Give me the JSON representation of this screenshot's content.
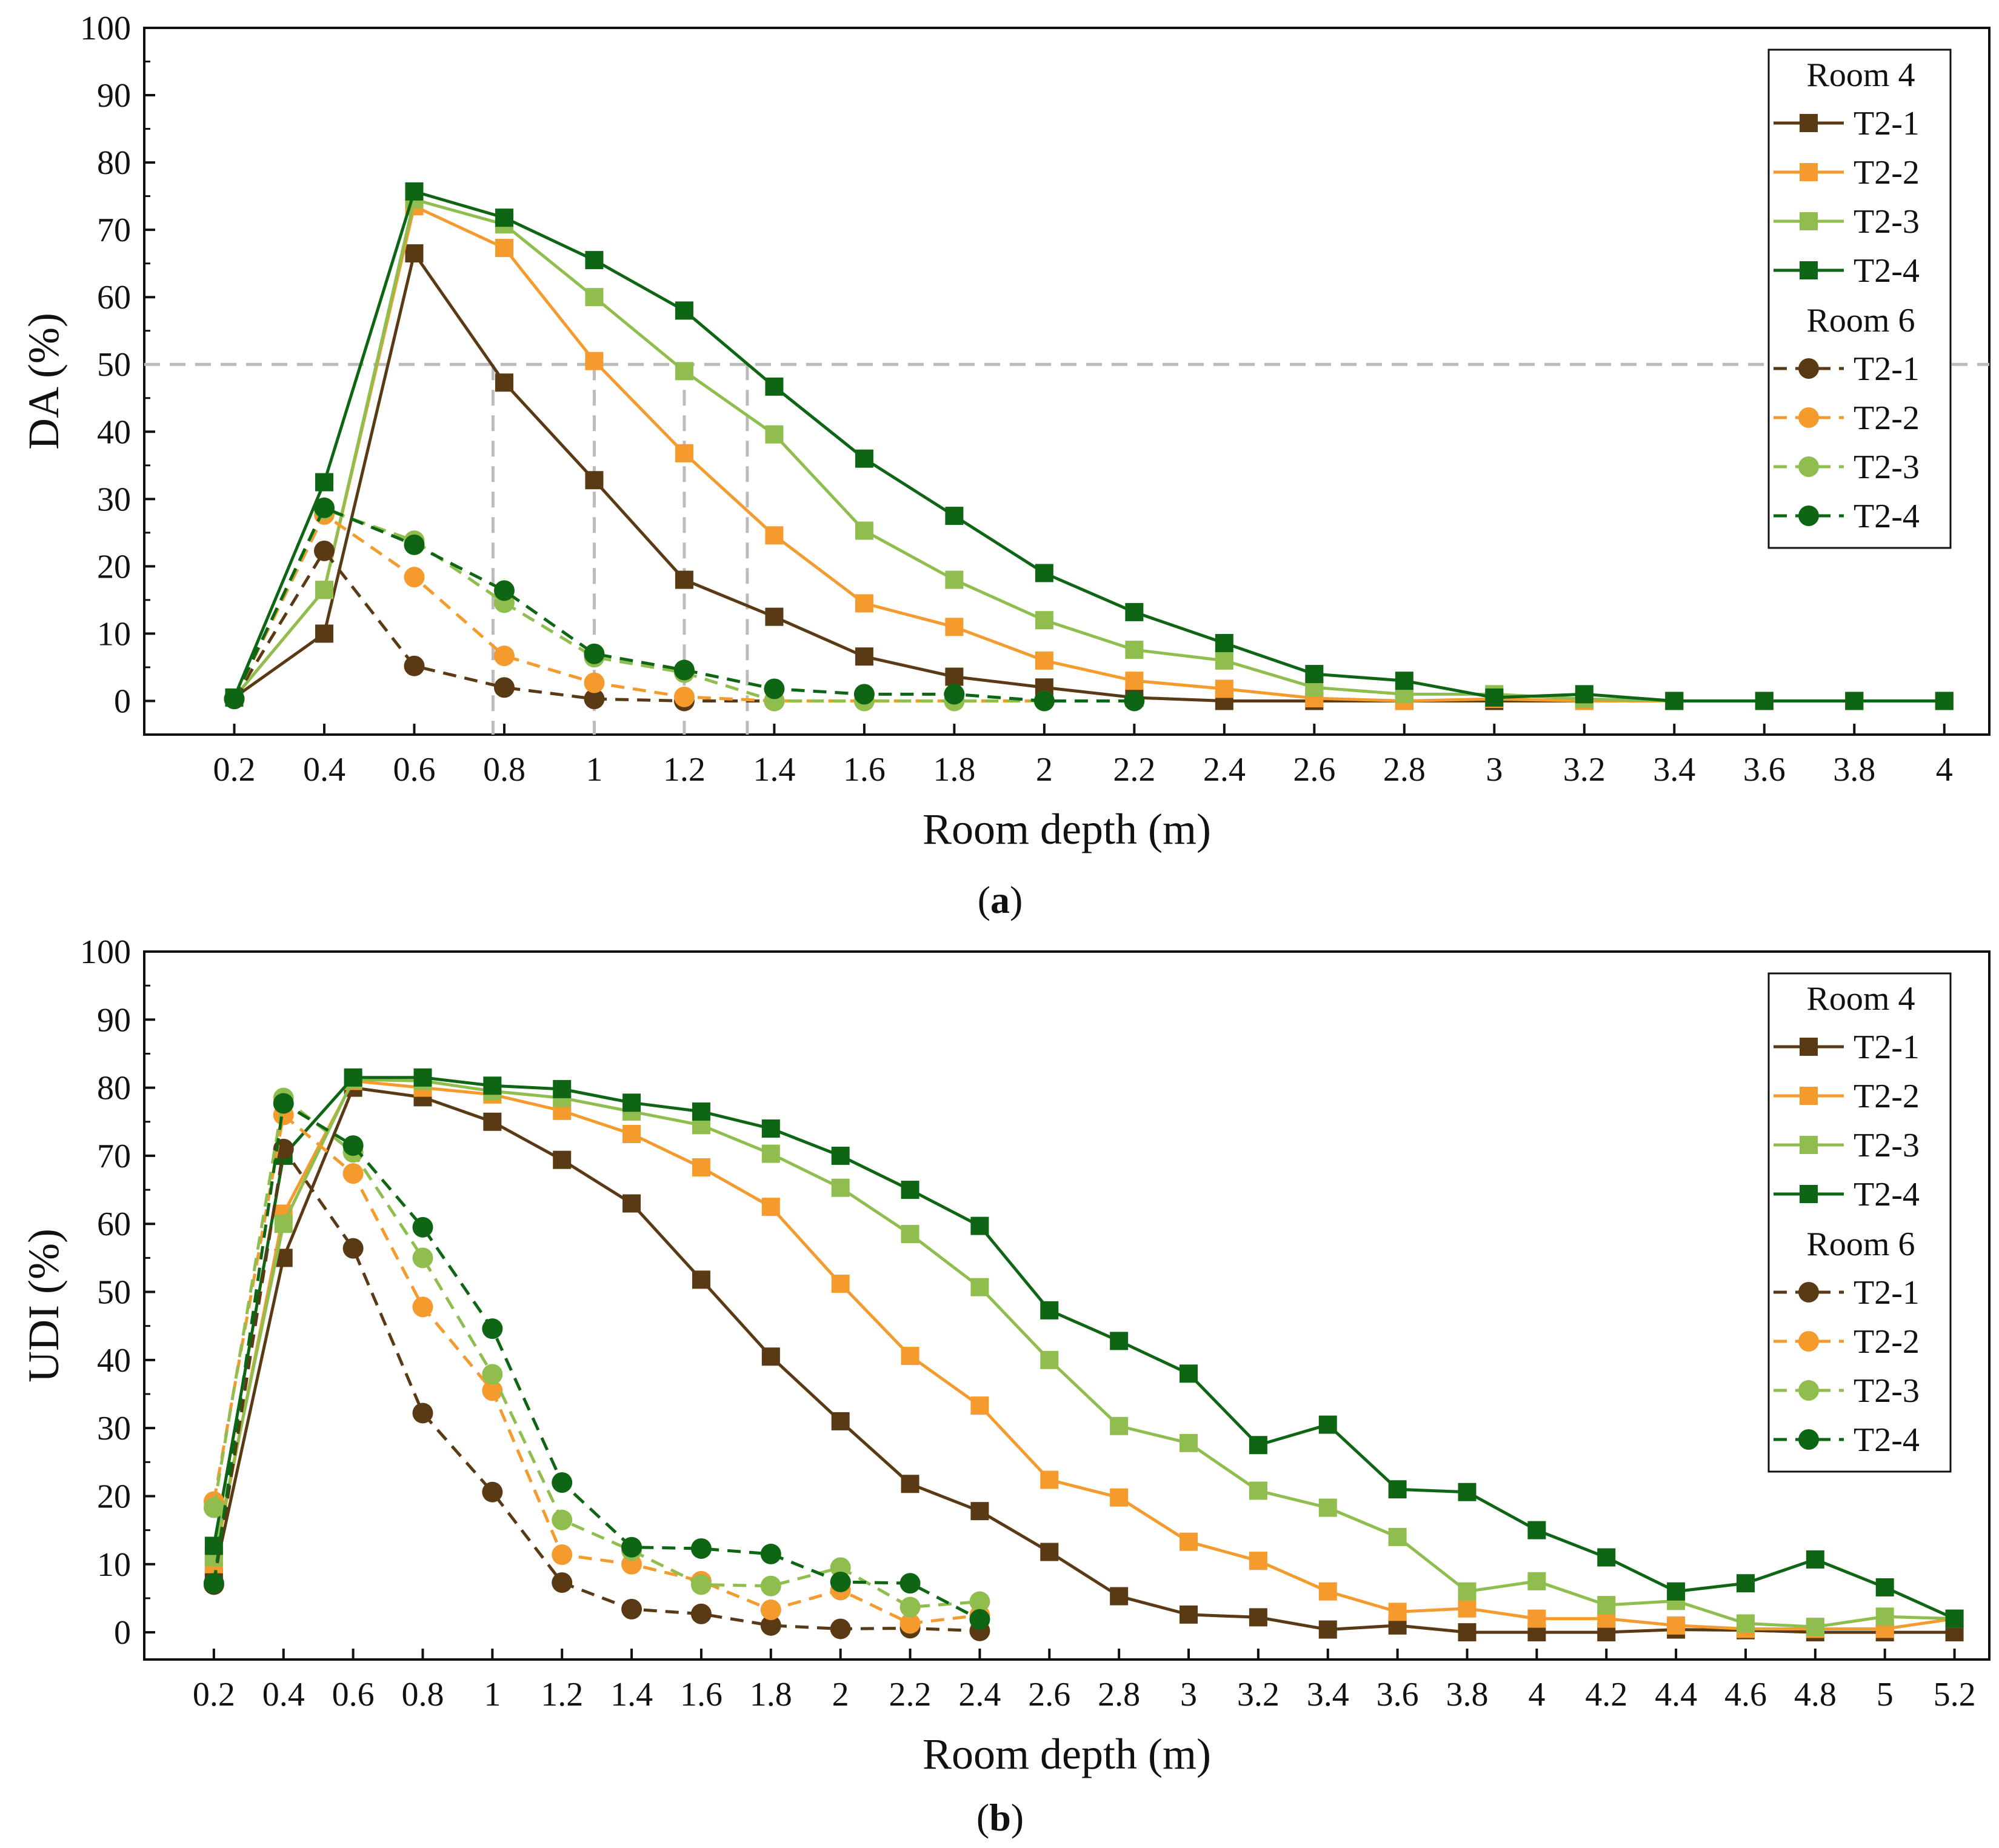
{
  "colors": {
    "T2-1": "#5a3a14",
    "T2-2": "#f59a2c",
    "T2-3": "#8fbe4e",
    "T2-4": "#0e6514",
    "reference_line": "#bbbbbb",
    "axis": "#111111"
  },
  "chart_data": [
    {
      "id": "a",
      "type": "line",
      "caption_letter": "a",
      "xlabel": "Room depth (m)",
      "ylabel": "DA (%)",
      "x": [
        0.2,
        0.4,
        0.6,
        0.8,
        1,
        1.2,
        1.4,
        1.6,
        1.8,
        2,
        2.2,
        2.4,
        2.6,
        2.8,
        3,
        3.2,
        3.4,
        3.6,
        3.8,
        4
      ],
      "x_tick_labels": [
        "0.2",
        "0.4",
        "0.6",
        "0.8",
        "1",
        "1.2",
        "1.4",
        "1.6",
        "1.8",
        "2",
        "2.2",
        "2.4",
        "2.6",
        "2.8",
        "3",
        "3.2",
        "3.4",
        "3.6",
        "3.8",
        "4"
      ],
      "xlim": [
        0.0,
        4.1
      ],
      "ylim": [
        -5,
        100
      ],
      "y_ticks": [
        0,
        10,
        20,
        30,
        40,
        50,
        60,
        70,
        80,
        90,
        100
      ],
      "y_tick_labels": [
        "0",
        "10",
        "20",
        "30",
        "40",
        "50",
        "60",
        "70",
        "80",
        "90",
        "100"
      ],
      "reference_line": {
        "y": 50,
        "drops_x": [
          0.775,
          1.0,
          1.2,
          1.34
        ]
      },
      "legend": {
        "position": "top-right",
        "groups": [
          {
            "title": "Room 4",
            "marker": "square",
            "dashed": false,
            "entries": [
              "T2-1",
              "T2-2",
              "T2-3",
              "T2-4"
            ]
          },
          {
            "title": "Room 6",
            "marker": "circle",
            "dashed": true,
            "entries": [
              "T2-1",
              "T2-2",
              "T2-3",
              "T2-4"
            ]
          }
        ]
      },
      "series": [
        {
          "room": "Room 4",
          "name": "T2-1",
          "marker": "square",
          "dashed": false,
          "values": [
            0.5,
            10,
            66.5,
            47.3,
            32.8,
            18,
            12.5,
            6.6,
            3.6,
            2,
            0.5,
            0,
            0,
            0,
            0,
            0,
            0,
            0,
            0,
            0
          ]
        },
        {
          "room": "Room 4",
          "name": "T2-2",
          "marker": "square",
          "dashed": false,
          "values": [
            0.5,
            16.5,
            73.5,
            67.3,
            50.5,
            36.8,
            24.6,
            14.5,
            11,
            6,
            3,
            1.8,
            0.4,
            0,
            0.3,
            0,
            0,
            0,
            0,
            0
          ]
        },
        {
          "room": "Room 4",
          "name": "T2-3",
          "marker": "square",
          "dashed": false,
          "values": [
            0.5,
            16.5,
            74.5,
            70.8,
            60,
            49,
            39.6,
            25.3,
            18,
            12,
            7.6,
            6,
            2,
            1,
            1,
            0.3,
            0,
            0,
            0,
            0
          ]
        },
        {
          "room": "Room 4",
          "name": "T2-4",
          "marker": "square",
          "dashed": false,
          "values": [
            0.5,
            32.5,
            75.7,
            71.8,
            65.5,
            58,
            46.7,
            36,
            27.5,
            19,
            13.2,
            8.6,
            4,
            3,
            0.5,
            1,
            0,
            0,
            0,
            0
          ]
        },
        {
          "room": "Room 6",
          "name": "T2-1",
          "marker": "circle",
          "dashed": true,
          "values": [
            0.3,
            22.3,
            5.2,
            2,
            0.3,
            0,
            0,
            null,
            null,
            null,
            null,
            null,
            null,
            null,
            null,
            null,
            null,
            null,
            null,
            null
          ]
        },
        {
          "room": "Room 6",
          "name": "T2-2",
          "marker": "circle",
          "dashed": true,
          "values": [
            0.3,
            27.7,
            18.4,
            6.7,
            2.7,
            0.6,
            0,
            0,
            0,
            0,
            null,
            null,
            null,
            null,
            null,
            null,
            null,
            null,
            null,
            null
          ]
        },
        {
          "room": "Room 6",
          "name": "T2-3",
          "marker": "circle",
          "dashed": true,
          "values": [
            0.3,
            28.5,
            23.8,
            14.6,
            6.5,
            4.2,
            0,
            0,
            0,
            0,
            null,
            null,
            null,
            null,
            null,
            null,
            null,
            null,
            null,
            null
          ]
        },
        {
          "room": "Room 6",
          "name": "T2-4",
          "marker": "circle",
          "dashed": true,
          "values": [
            0.3,
            28.7,
            23.2,
            16.4,
            7,
            4.6,
            1.8,
            1,
            1,
            0,
            0,
            null,
            null,
            null,
            null,
            null,
            null,
            null,
            null,
            null
          ]
        }
      ]
    },
    {
      "id": "b",
      "type": "line",
      "caption_letter": "b",
      "xlabel": "Room depth (m)",
      "ylabel": "UDI (%)",
      "x": [
        0.2,
        0.4,
        0.6,
        0.8,
        1,
        1.2,
        1.4,
        1.6,
        1.8,
        2,
        2.2,
        2.4,
        2.6,
        2.8,
        3,
        3.2,
        3.4,
        3.6,
        3.8,
        4,
        4.2,
        4.4,
        4.6,
        4.8,
        5,
        5.2
      ],
      "x_tick_labels": [
        "0.2",
        "0.4",
        "0.6",
        "0.8",
        "1",
        "1.2",
        "1.4",
        "1.6",
        "1.8",
        "2",
        "2.2",
        "2.4",
        "2.6",
        "2.8",
        "3",
        "3.2",
        "3.4",
        "3.6",
        "3.8",
        "4",
        "4.2",
        "4.4",
        "4.6",
        "4.8",
        "5",
        "5.2"
      ],
      "xlim": [
        0.0,
        5.3
      ],
      "ylim": [
        -4,
        100
      ],
      "y_ticks": [
        0,
        10,
        20,
        30,
        40,
        50,
        60,
        70,
        80,
        90,
        100
      ],
      "y_tick_labels": [
        "0",
        "10",
        "20",
        "30",
        "40",
        "50",
        "60",
        "70",
        "80",
        "90",
        "100"
      ],
      "legend": {
        "position": "top-right",
        "groups": [
          {
            "title": "Room 4",
            "marker": "square",
            "dashed": false,
            "entries": [
              "T2-1",
              "T2-2",
              "T2-3",
              "T2-4"
            ]
          },
          {
            "title": "Room 6",
            "marker": "circle",
            "dashed": true,
            "entries": [
              "T2-1",
              "T2-2",
              "T2-3",
              "T2-4"
            ]
          }
        ]
      },
      "series": [
        {
          "room": "Room 4",
          "name": "T2-1",
          "marker": "square",
          "dashed": false,
          "values": [
            8,
            55,
            80,
            78.6,
            75,
            69.4,
            63,
            51.8,
            40.5,
            31,
            21.8,
            17.8,
            11.8,
            5.3,
            2.6,
            2.2,
            0.4,
            1,
            0,
            0,
            0,
            0.4,
            0.3,
            0,
            0,
            0
          ]
        },
        {
          "room": "Room 4",
          "name": "T2-2",
          "marker": "square",
          "dashed": false,
          "values": [
            10,
            61.5,
            81,
            80,
            79,
            76.6,
            73.2,
            68.3,
            62.5,
            51.2,
            40.6,
            33.3,
            22.4,
            19.8,
            13.3,
            10.5,
            6,
            3,
            3.5,
            2,
            2,
            1,
            0.5,
            0.5,
            0.5,
            2
          ]
        },
        {
          "room": "Room 4",
          "name": "T2-3",
          "marker": "square",
          "dashed": false,
          "values": [
            11,
            60,
            81.2,
            81,
            79.5,
            78.5,
            76.5,
            74.5,
            70.3,
            65.3,
            58.5,
            50.7,
            40,
            30.3,
            27.8,
            20.8,
            18.3,
            14,
            6,
            7.5,
            4,
            4.6,
            1.3,
            0.8,
            2.3,
            2
          ]
        },
        {
          "room": "Room 4",
          "name": "T2-4",
          "marker": "square",
          "dashed": false,
          "values": [
            12.7,
            70,
            81.5,
            81.5,
            80.3,
            79.8,
            77.8,
            76.5,
            74,
            70,
            65,
            59.7,
            47.3,
            42.8,
            38,
            27.5,
            30.5,
            21,
            20.6,
            15,
            11,
            6,
            7.2,
            10.7,
            6.6,
            2
          ]
        },
        {
          "room": "Room 6",
          "name": "T2-1",
          "marker": "circle",
          "dashed": true,
          "values": [
            7,
            71,
            56.4,
            32.2,
            20.6,
            7.3,
            3.4,
            2.7,
            1,
            0.5,
            0.6,
            0.2,
            null,
            null,
            null,
            null,
            null,
            null,
            null,
            null,
            null,
            null,
            null,
            null,
            null,
            null
          ]
        },
        {
          "room": "Room 6",
          "name": "T2-2",
          "marker": "circle",
          "dashed": true,
          "values": [
            19.2,
            76,
            67.4,
            47.8,
            35.5,
            11.4,
            10,
            7.5,
            3.3,
            6.2,
            1.3,
            2.5,
            null,
            null,
            null,
            null,
            null,
            null,
            null,
            null,
            null,
            null,
            null,
            null,
            null,
            null
          ]
        },
        {
          "room": "Room 6",
          "name": "T2-3",
          "marker": "circle",
          "dashed": true,
          "values": [
            18.3,
            78.5,
            70.5,
            55,
            37.9,
            16.5,
            12,
            7,
            6.8,
            9.5,
            3.7,
            4.5,
            null,
            null,
            null,
            null,
            null,
            null,
            null,
            null,
            null,
            null,
            null,
            null,
            null,
            null
          ]
        },
        {
          "room": "Room 6",
          "name": "T2-4",
          "marker": "circle",
          "dashed": true,
          "values": [
            7.2,
            77.7,
            71.5,
            59.5,
            44.6,
            22,
            12.5,
            12.3,
            11.5,
            7.4,
            7.2,
            1.9,
            null,
            null,
            null,
            null,
            null,
            null,
            null,
            null,
            null,
            null,
            null,
            null,
            null,
            null
          ]
        }
      ]
    }
  ]
}
